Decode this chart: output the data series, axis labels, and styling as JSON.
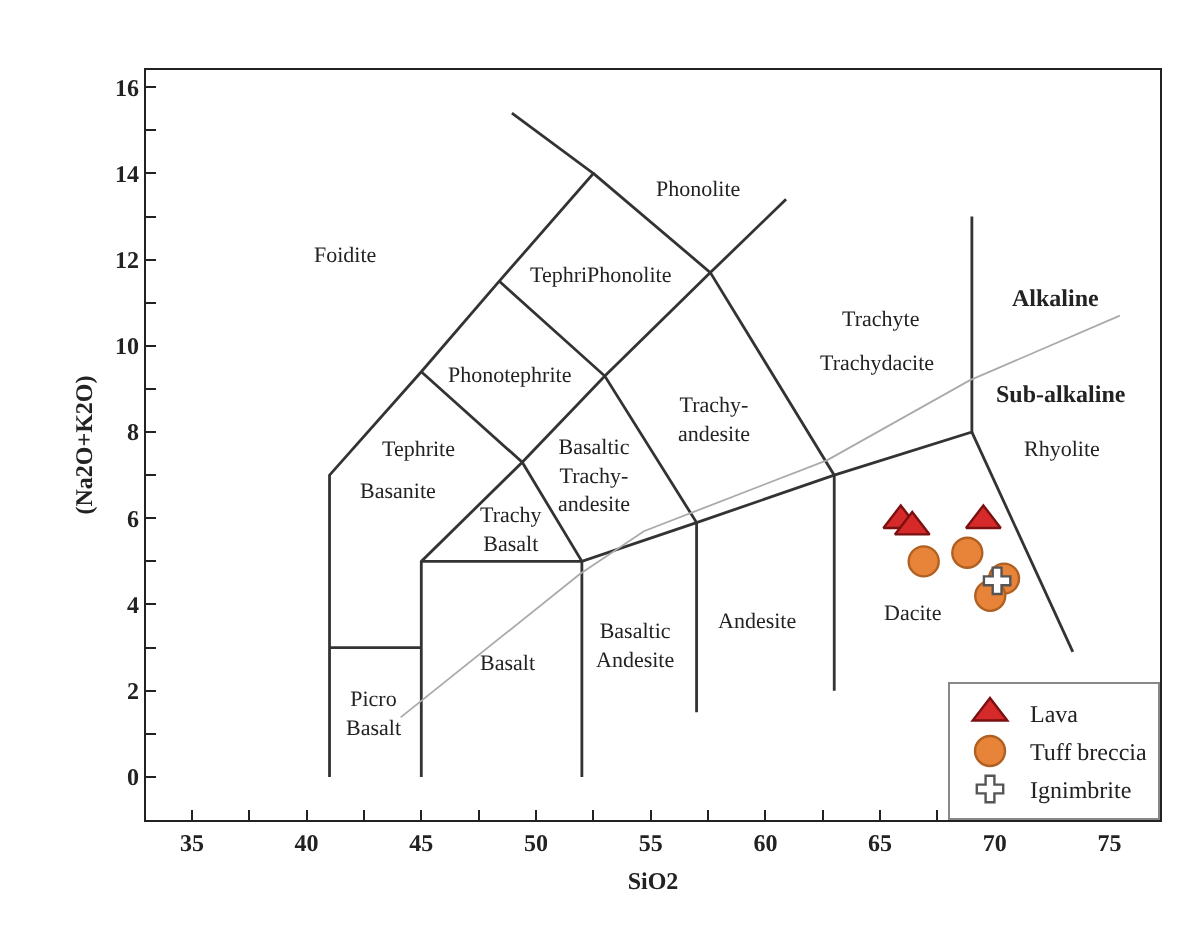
{
  "chart_data": {
    "type": "scatter",
    "xlabel": "SiO2",
    "ylabel": "(Na2O+K2O)",
    "xlim": [
      33,
      77.2
    ],
    "ylim": [
      -1,
      16.4
    ],
    "xticks": [
      35,
      {
        "value": 37.5,
        "label": null
      },
      40,
      {
        "value": 42.5,
        "label": null
      },
      45,
      {
        "value": 47.5,
        "label": null
      },
      50,
      {
        "value": 52.5,
        "label": null
      },
      55,
      {
        "value": 57.5,
        "label": null
      },
      60,
      {
        "value": 62.5,
        "label": null
      },
      65,
      {
        "value": 67.5,
        "label": null
      },
      70,
      {
        "value": 72.5,
        "label": null
      },
      75
    ],
    "yticks": [
      0,
      {
        "value": 1,
        "label": null
      },
      2,
      {
        "value": 3,
        "label": null
      },
      4,
      {
        "value": 5,
        "label": null
      },
      6,
      {
        "value": 7,
        "label": null
      },
      8,
      {
        "value": 9,
        "label": null
      },
      10,
      {
        "value": 11,
        "label": null
      },
      12,
      {
        "value": 13,
        "label": null
      },
      14,
      {
        "value": 15,
        "label": null
      },
      16
    ],
    "grid": false,
    "legend": "bottom right",
    "series": [
      {
        "type": "line",
        "color": "#333333",
        "x": [
          41,
          41,
          45,
          48.4,
          52.5,
          48.95
        ],
        "values": [
          0,
          7,
          9.4,
          11.5,
          14,
          15.4
        ]
      },
      {
        "type": "line",
        "color": "#333333",
        "x": [
          52.5,
          57.6,
          63,
          63
        ],
        "values": [
          14,
          11.7,
          7,
          2
        ]
      },
      {
        "type": "line",
        "color": "#333333",
        "x": [
          45,
          45,
          49.4,
          53,
          57.6,
          60.9
        ],
        "values": [
          0,
          5,
          7.3,
          9.3,
          11.7,
          13.4
        ]
      },
      {
        "type": "line",
        "color": "#333333",
        "x": [
          45,
          49.4,
          52,
          52
        ],
        "values": [
          9.4,
          7.3,
          5,
          0
        ]
      },
      {
        "type": "line",
        "color": "#333333",
        "x": [
          48.4,
          53,
          57,
          57
        ],
        "values": [
          11.5,
          9.3,
          5.9,
          1.5
        ]
      },
      {
        "type": "line",
        "color": "#333333",
        "x": [
          45,
          52,
          57,
          63,
          69,
          69
        ],
        "values": [
          5,
          5,
          5.9,
          7,
          8,
          13
        ]
      },
      {
        "type": "line",
        "color": "#333333",
        "x": [
          69,
          73.4
        ],
        "values": [
          8,
          2.9
        ]
      },
      {
        "type": "line",
        "color": "#333333",
        "x": [
          41,
          45
        ],
        "values": [
          3,
          3
        ]
      },
      {
        "type": "line",
        "color": "#aaaaaa",
        "x": [
          44.1,
          51.9,
          54.7,
          62.7,
          68.9,
          75.45
        ],
        "values": [
          1.38,
          4.7,
          5.7,
          7.35,
          9.2,
          10.7
        ]
      },
      {
        "name": "Lava",
        "color": "#d62a2a",
        "marker": "triangle",
        "x": [
          65.9,
          66.4,
          69.5
        ],
        "values": [
          5.95,
          5.8,
          5.95
        ]
      },
      {
        "name": "Tuff breccia",
        "color": "#e8843a",
        "marker": "circle",
        "x": [
          66.9,
          68.8,
          70.4,
          69.8
        ],
        "values": [
          5.0,
          5.2,
          4.6,
          4.2
        ]
      },
      {
        "name": "Ignimbrite",
        "color": "#ffffff",
        "marker": "cross",
        "x": [
          70.1
        ],
        "values": [
          4.55
        ]
      }
    ],
    "annotations": [
      "Phonolite",
      "Foidite",
      "TephriPhonolite",
      "Trachyte",
      "Trachydacite",
      "Alkaline",
      "Phonotephrite",
      "Sub-alkaline",
      "Trachy-\nandesite",
      "Tephrite",
      "Rhyolite",
      "Basanite",
      "Basaltic\nTrachy-\nandesite",
      "Trachy\nBasalt",
      "Dacite",
      "Andesite",
      "Basaltic\nAndesite",
      "Basalt",
      "Picro\nBasalt"
    ]
  }
}
